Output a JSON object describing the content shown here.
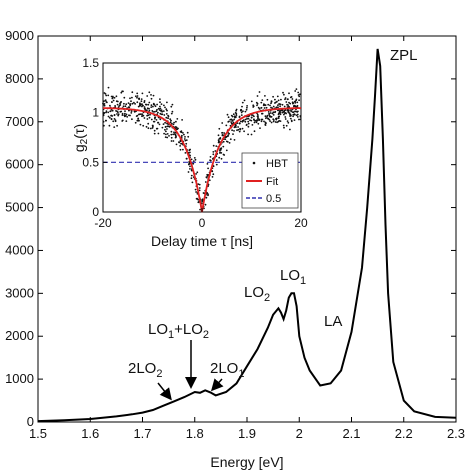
{
  "chart_data": [
    {
      "type": "line",
      "xlabel": "Energy [eV]",
      "ylabel": "",
      "xlim": [
        1.5,
        2.3
      ],
      "ylim": [
        0,
        9000
      ],
      "xticks": [
        "1.5",
        "1.6",
        "1.7",
        "1.8",
        "1.9",
        "2",
        "2.1",
        "2.2",
        "2.3"
      ],
      "yticks": [
        "0",
        "1000",
        "2000",
        "3000",
        "4000",
        "5000",
        "6000",
        "7000",
        "8000",
        "9000"
      ],
      "series": [
        {
          "x": [
            1.5,
            1.55,
            1.6,
            1.65,
            1.68,
            1.7,
            1.72,
            1.74,
            1.76,
            1.78,
            1.8,
            1.81,
            1.82,
            1.83,
            1.84,
            1.86,
            1.88,
            1.9,
            1.92,
            1.94,
            1.95,
            1.96,
            1.965,
            1.97,
            1.975,
            1.98,
            1.985,
            1.99,
            1.995,
            2.0,
            2.01,
            2.02,
            2.04,
            2.06,
            2.08,
            2.1,
            2.12,
            2.13,
            2.14,
            2.145,
            2.15,
            2.155,
            2.16,
            2.165,
            2.17,
            2.18,
            2.2,
            2.22,
            2.26,
            2.3
          ],
          "values": [
            20,
            40,
            70,
            130,
            180,
            220,
            280,
            380,
            480,
            580,
            700,
            680,
            740,
            690,
            620,
            700,
            900,
            1300,
            1700,
            2200,
            2500,
            2650,
            2550,
            2400,
            2600,
            2900,
            3000,
            3000,
            2700,
            2000,
            1500,
            1200,
            850,
            900,
            1200,
            2100,
            3600,
            5000,
            6600,
            7600,
            8700,
            8300,
            6600,
            4600,
            3000,
            1400,
            500,
            250,
            120,
            100
          ]
        }
      ],
      "annotations": [
        {
          "text": "ZPL",
          "x": 2.16,
          "y": 8800
        },
        {
          "text": "LA",
          "x": 2.11,
          "y": 2300
        },
        {
          "base": "LO",
          "sub": "1",
          "x": 1.99,
          "y": 3000
        },
        {
          "base": "LO",
          "sub": "2",
          "x": 1.96,
          "y": 2650
        },
        {
          "base": "2LO",
          "sub": "2",
          "x": 1.74,
          "y": 300
        },
        {
          "base": "2LO",
          "sub": "1",
          "x": 1.84,
          "y": 600
        },
        {
          "base": "LO",
          "sub": "1",
          "plus": "+LO",
          "sub2": "2",
          "x": 1.8,
          "y": 700
        }
      ]
    },
    {
      "type": "scatter",
      "xlabel": "Delay time τ [ns]",
      "ylabel_base": "g",
      "ylabel_sub": "2",
      "ylabel_arg": "(τ)",
      "xlim": [
        -20,
        20
      ],
      "ylim": [
        0,
        1.5
      ],
      "xticks": [
        "-20",
        "0",
        "20"
      ],
      "yticks": [
        "0",
        "0.5",
        "1",
        "1.5"
      ],
      "model": {
        "baseline": 1.05,
        "tau_ns": 3.5,
        "noise": 0.12,
        "n_points": 900
      },
      "reference_line": 0.5,
      "legend": [
        "HBT",
        "Fit",
        "0.5"
      ],
      "legend_position": "lower-right",
      "colors": {
        "data": "#111111",
        "fit": "#e02020",
        "reference": "#3030b0"
      }
    }
  ]
}
